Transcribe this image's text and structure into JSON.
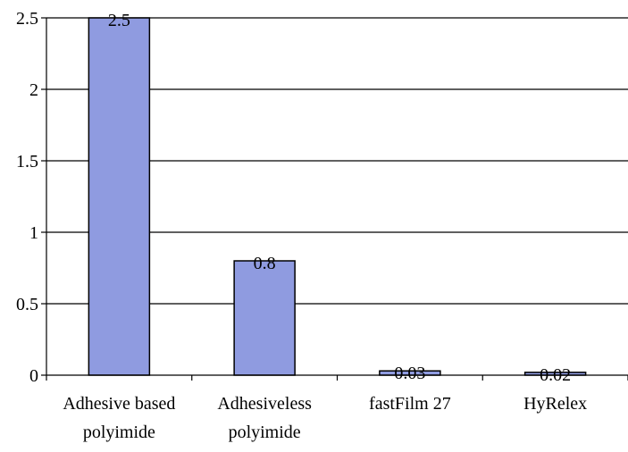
{
  "chart_data": {
    "type": "bar",
    "categories": [
      [
        "Adhesive based",
        "polyimide"
      ],
      [
        "Adhesiveless",
        "polyimide"
      ],
      [
        "fastFilm 27"
      ],
      [
        "HyRelex"
      ]
    ],
    "values": [
      2.5,
      0.8,
      0.03,
      0.02
    ],
    "data_labels": [
      "2.5",
      "0.8",
      "0.03",
      "0.02"
    ],
    "y_ticks": [
      0,
      0.5,
      1,
      1.5,
      2,
      2.5
    ],
    "y_tick_labels": [
      "0",
      "0.5",
      "1",
      "1.5",
      "2",
      "2.5"
    ],
    "ylim": [
      0,
      2.5
    ],
    "grid": true,
    "legend": "none",
    "bar_color": "#8f9be0",
    "bar_stroke": "#000000"
  }
}
